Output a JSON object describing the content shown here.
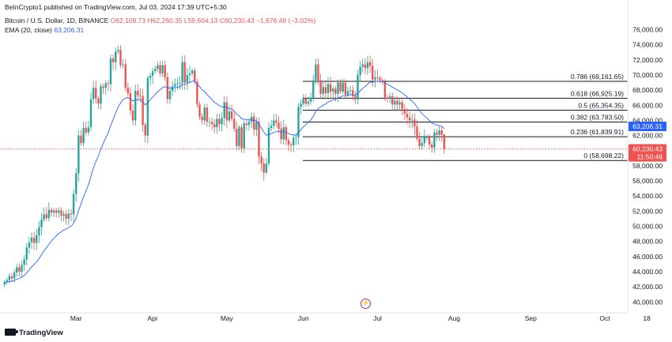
{
  "header": {
    "published": "BeInCrypto1 published on TradingView.com, Jul 03, 2024 17:39 UTC+5:30",
    "symbol": "Bitcoin / U.S. Dollar, 1D, BINANCE",
    "open": "O62,109.73",
    "high": "H62,260.35",
    "low": "L59,604.13",
    "close": "C60,230.43",
    "change": "−1,876.49 (−3.02%)",
    "ema_label": "EMA (20, close)",
    "ema_value": "63,206.31"
  },
  "footer": {
    "brand": "TradingView"
  },
  "colors": {
    "up": "#26a69a",
    "down": "#ef5350",
    "ema": "#2962ff",
    "fib": "#131722",
    "axis_text": "#131722",
    "grid": "#f0f3fa"
  },
  "chart_data": {
    "type": "candlestick",
    "instrument": "Bitcoin / U.S. Dollar",
    "interval": "1D",
    "exchange": "BINANCE",
    "x_tick_labels": [
      "Mar",
      "Apr",
      "May",
      "Jun",
      "Jul",
      "Aug",
      "Sep",
      "Oct",
      "18"
    ],
    "x_tick_dates": [
      "2024-03-01",
      "2024-04-01",
      "2024-05-01",
      "2024-06-01",
      "2024-07-01",
      "2024-08-01",
      "2024-09-01",
      "2024-10-01",
      "2024-10-18"
    ],
    "y_tick_labels": [
      "40,000.00",
      "42,000.00",
      "44,000.00",
      "46,000.00",
      "48,000.00",
      "50,000.00",
      "52,000.00",
      "54,000.00",
      "56,000.00",
      "58,000.00",
      "60,000.00",
      "62,000.00",
      "64,000.00",
      "66,000.00",
      "68,000.00",
      "70,000.00",
      "72,000.00",
      "74,000.00",
      "76,000.00"
    ],
    "y_ticks": [
      40000,
      42000,
      44000,
      46000,
      48000,
      50000,
      52000,
      54000,
      56000,
      58000,
      60000,
      62000,
      64000,
      66000,
      68000,
      70000,
      72000,
      74000,
      76000
    ],
    "ylim": [
      39200,
      77200
    ],
    "price_line": {
      "value": 60230.43,
      "label": "60,230.43",
      "countdown": "11:50:48"
    },
    "ema_tag": {
      "value": 63206.31,
      "label": "63,206.31"
    },
    "fib_levels": [
      {
        "ratio": "0.786",
        "value": 69161.65,
        "label": "0.786 (69,161.65)"
      },
      {
        "ratio": "0.618",
        "value": 66925.19,
        "label": "0.618 (66,925.19)"
      },
      {
        "ratio": "0.5",
        "value": 65354.35,
        "label": "0.5 (65,354.35)"
      },
      {
        "ratio": "0.382",
        "value": 63783.5,
        "label": "0.382 (63,783.50)"
      },
      {
        "ratio": "0.236",
        "value": 61839.91,
        "label": "0.236 (61,839.91)"
      },
      {
        "ratio": "0",
        "value": 58698.22,
        "label": "0 (58,698.22)"
      }
    ],
    "closes": [
      42600,
      42900,
      43400,
      43100,
      43900,
      44600,
      44000,
      44900,
      45600,
      47200,
      47900,
      48500,
      47800,
      48800,
      49900,
      50900,
      51600,
      51100,
      52200,
      51800,
      52100,
      51800,
      52100,
      51400,
      51600,
      51000,
      51700,
      51600,
      54300,
      57000,
      62000,
      61000,
      63000,
      62400,
      63100,
      66800,
      68300,
      66900,
      66200,
      68500,
      68300,
      68900,
      68800,
      72200,
      71700,
      73100,
      73300,
      71300,
      71400,
      68300,
      67600,
      65300,
      64000,
      67900,
      67300,
      67200,
      63400,
      62000,
      69600,
      69900,
      70500,
      70800,
      71300,
      70200,
      71300,
      69700,
      66800,
      67900,
      68500,
      68800,
      68900,
      69000,
      71700,
      69000,
      70000,
      70200,
      70600,
      69100,
      66100,
      64500,
      64000,
      65700,
      63800,
      63800,
      63500,
      63100,
      64200,
      63500,
      64300,
      66400,
      64000,
      65200,
      64200,
      62900,
      60600,
      63100,
      60300,
      63600,
      63400,
      63800,
      64500,
      62800,
      63800,
      59200,
      58300,
      57100,
      58300,
      63000,
      63300,
      64000,
      63700,
      62900,
      61500,
      63100,
      61400,
      60800,
      60700,
      61700,
      61800,
      65800,
      66200,
      66900,
      66200,
      66500,
      67000,
      69300,
      71400,
      69300,
      67500,
      68400,
      67600,
      68800,
      67800,
      68200,
      67500,
      69000,
      67800,
      69000,
      67400,
      67900,
      68000,
      67200,
      66800,
      70000,
      71100,
      71400,
      70900,
      71700,
      71200,
      69400,
      69700,
      69600,
      69300,
      69100,
      67000,
      66900,
      67200,
      66100,
      66600,
      66100,
      66400,
      65500,
      64900,
      64400,
      64000,
      64100,
      63200,
      61600,
      60600,
      61000,
      61800,
      61800,
      60800,
      60400,
      62400,
      62100,
      62700,
      62100,
      60230
    ],
    "ema_20": 63206.31,
    "last_candle": {
      "date": "2024-07-03",
      "open": 62109.73,
      "high": 62260.35,
      "low": 59604.13,
      "close": 60230.43
    }
  }
}
